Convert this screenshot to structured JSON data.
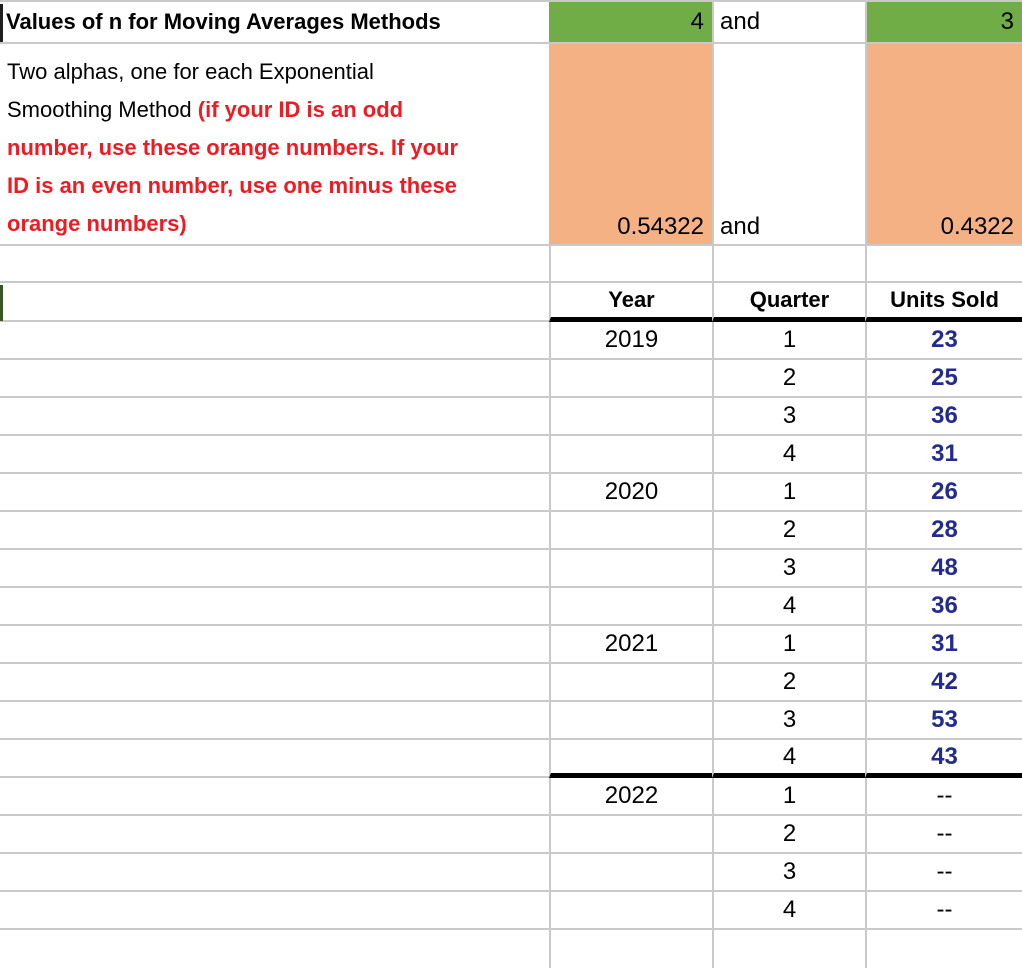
{
  "colors": {
    "green_fill": "#70AD47",
    "orange_fill": "#F4B183",
    "units_navy": "#232C8C",
    "note_red": "#EF1B23",
    "gridline_gray": "#C9C9C9",
    "thick_border": "#000000",
    "edge_stripe_dark": "#1F1F1F",
    "edge_stripe_green": "#375623"
  },
  "top_row": {
    "title": "Values of n for Moving Averages Methods",
    "n1": "4",
    "conj": "and",
    "n2": "3"
  },
  "alpha_block": {
    "black_text": "Two alphas, one for each Exponential Smoothing Method",
    "red_text": "(if your ID is an odd number, use these orange numbers. If your ID is an even number, use one minus these orange numbers)",
    "lines": [
      {
        "segments": [
          {
            "text": "Two alphas, one for each Exponential",
            "style": "black"
          }
        ]
      },
      {
        "segments": [
          {
            "text": "Smoothing Method ",
            "style": "black"
          },
          {
            "text": "(if your ID is an odd",
            "style": "red"
          }
        ]
      },
      {
        "segments": [
          {
            "text": "number, use these orange numbers. If your",
            "style": "red"
          }
        ]
      },
      {
        "segments": [
          {
            "text": "ID is an even number, use one minus these",
            "style": "red"
          }
        ]
      },
      {
        "segments": [
          {
            "text": "orange numbers)",
            "style": "red"
          }
        ]
      }
    ],
    "alpha1": "0.54322",
    "conj": "and",
    "alpha2": "0.4322"
  },
  "table": {
    "headers": [
      "Year",
      "Quarter",
      "Units Sold"
    ],
    "rows": [
      {
        "year": "2019",
        "quarter": "1",
        "units": "23",
        "na": false,
        "thick_bottom": false
      },
      {
        "year": "",
        "quarter": "2",
        "units": "25",
        "na": false,
        "thick_bottom": false
      },
      {
        "year": "",
        "quarter": "3",
        "units": "36",
        "na": false,
        "thick_bottom": false
      },
      {
        "year": "",
        "quarter": "4",
        "units": "31",
        "na": false,
        "thick_bottom": false
      },
      {
        "year": "2020",
        "quarter": "1",
        "units": "26",
        "na": false,
        "thick_bottom": false
      },
      {
        "year": "",
        "quarter": "2",
        "units": "28",
        "na": false,
        "thick_bottom": false
      },
      {
        "year": "",
        "quarter": "3",
        "units": "48",
        "na": false,
        "thick_bottom": false
      },
      {
        "year": "",
        "quarter": "4",
        "units": "36",
        "na": false,
        "thick_bottom": false
      },
      {
        "year": "2021",
        "quarter": "1",
        "units": "31",
        "na": false,
        "thick_bottom": false
      },
      {
        "year": "",
        "quarter": "2",
        "units": "42",
        "na": false,
        "thick_bottom": false
      },
      {
        "year": "",
        "quarter": "3",
        "units": "53",
        "na": false,
        "thick_bottom": false
      },
      {
        "year": "",
        "quarter": "4",
        "units": "43",
        "na": false,
        "thick_bottom": true
      },
      {
        "year": "2022",
        "quarter": "1",
        "units": "--",
        "na": true,
        "thick_bottom": false
      },
      {
        "year": "",
        "quarter": "2",
        "units": "--",
        "na": true,
        "thick_bottom": false
      },
      {
        "year": "",
        "quarter": "3",
        "units": "--",
        "na": true,
        "thick_bottom": false
      },
      {
        "year": "",
        "quarter": "4",
        "units": "--",
        "na": true,
        "thick_bottom": false
      }
    ]
  }
}
